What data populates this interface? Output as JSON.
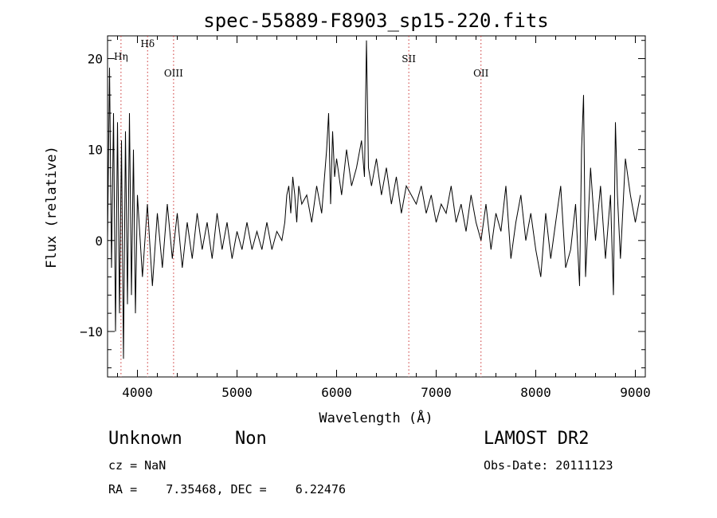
{
  "chart_data": {
    "type": "line",
    "title": "spec-55889-F8903_sp15-220.fits",
    "xlabel": "Wavelength (Å)",
    "ylabel": "Flux (relative)",
    "xlim": [
      3700,
      9100
    ],
    "ylim": [
      -15,
      22.5
    ],
    "xticks": [
      4000,
      5000,
      6000,
      7000,
      8000,
      9000
    ],
    "yticks": [
      -10,
      0,
      10,
      20
    ],
    "grid": false,
    "series_color": "#000000",
    "line_marker_color": "#cc3333",
    "line_markers": [
      {
        "label": "Hη",
        "wavelength": 3835
      },
      {
        "label": "Hδ",
        "wavelength": 4102
      },
      {
        "label": "OIII",
        "wavelength": 4363
      },
      {
        "label": "SII",
        "wavelength": 6725
      },
      {
        "label": "OII",
        "wavelength": 7450
      }
    ],
    "spectrum": {
      "wavelength": [
        3700,
        3720,
        3740,
        3760,
        3780,
        3800,
        3820,
        3840,
        3860,
        3880,
        3900,
        3920,
        3940,
        3960,
        3980,
        4000,
        4050,
        4100,
        4150,
        4200,
        4250,
        4300,
        4350,
        4400,
        4450,
        4500,
        4550,
        4600,
        4650,
        4700,
        4750,
        4800,
        4850,
        4900,
        4950,
        5000,
        5050,
        5100,
        5150,
        5200,
        5250,
        5300,
        5350,
        5400,
        5450,
        5480,
        5500,
        5520,
        5540,
        5560,
        5580,
        5600,
        5620,
        5650,
        5700,
        5750,
        5800,
        5850,
        5900,
        5920,
        5940,
        5960,
        5980,
        6000,
        6050,
        6100,
        6150,
        6200,
        6250,
        6280,
        6300,
        6320,
        6350,
        6400,
        6450,
        6500,
        6550,
        6600,
        6650,
        6700,
        6750,
        6800,
        6850,
        6900,
        6950,
        7000,
        7050,
        7100,
        7150,
        7200,
        7250,
        7300,
        7350,
        7400,
        7450,
        7500,
        7550,
        7600,
        7650,
        7700,
        7750,
        7800,
        7850,
        7900,
        7950,
        8000,
        8050,
        8100,
        8150,
        8200,
        8250,
        8300,
        8350,
        8400,
        8440,
        8460,
        8480,
        8500,
        8550,
        8600,
        8650,
        8700,
        8750,
        8780,
        8800,
        8820,
        8850,
        8900,
        8950,
        9000,
        9050
      ],
      "flux": [
        0,
        19,
        -3,
        14,
        -10,
        13,
        -8,
        11,
        -13,
        12,
        -7,
        14,
        -6,
        10,
        -8,
        5,
        -4,
        4,
        -5,
        3,
        -3,
        4,
        -2,
        3,
        -3,
        2,
        -2,
        3,
        -1,
        2,
        -2,
        3,
        -1,
        2,
        -2,
        1,
        -1,
        2,
        -1,
        1,
        -1,
        2,
        -1,
        1,
        0,
        2,
        5,
        6,
        3,
        7,
        5,
        2,
        6,
        4,
        5,
        2,
        6,
        3,
        10,
        14,
        4,
        12,
        7,
        9,
        5,
        10,
        6,
        8,
        11,
        7,
        22,
        8,
        6,
        9,
        5,
        8,
        4,
        7,
        3,
        6,
        5,
        4,
        6,
        3,
        5,
        2,
        4,
        3,
        6,
        2,
        4,
        1,
        5,
        2,
        0,
        4,
        -1,
        3,
        1,
        6,
        -2,
        2,
        5,
        0,
        3,
        -1,
        -4,
        3,
        -2,
        2,
        6,
        -3,
        -1,
        4,
        -5,
        10,
        16,
        -4,
        8,
        0,
        6,
        -2,
        5,
        -6,
        13,
        5,
        -2,
        9,
        5,
        2,
        5
      ]
    },
    "annotations": {
      "obj_class": "Unknown",
      "obj_subclass": "Non",
      "survey": "LAMOST DR2",
      "cz": "cz = NaN",
      "obs_date": "Obs-Date: 20111123",
      "coords": "RA =    7.35468, DEC =    6.22476"
    }
  }
}
